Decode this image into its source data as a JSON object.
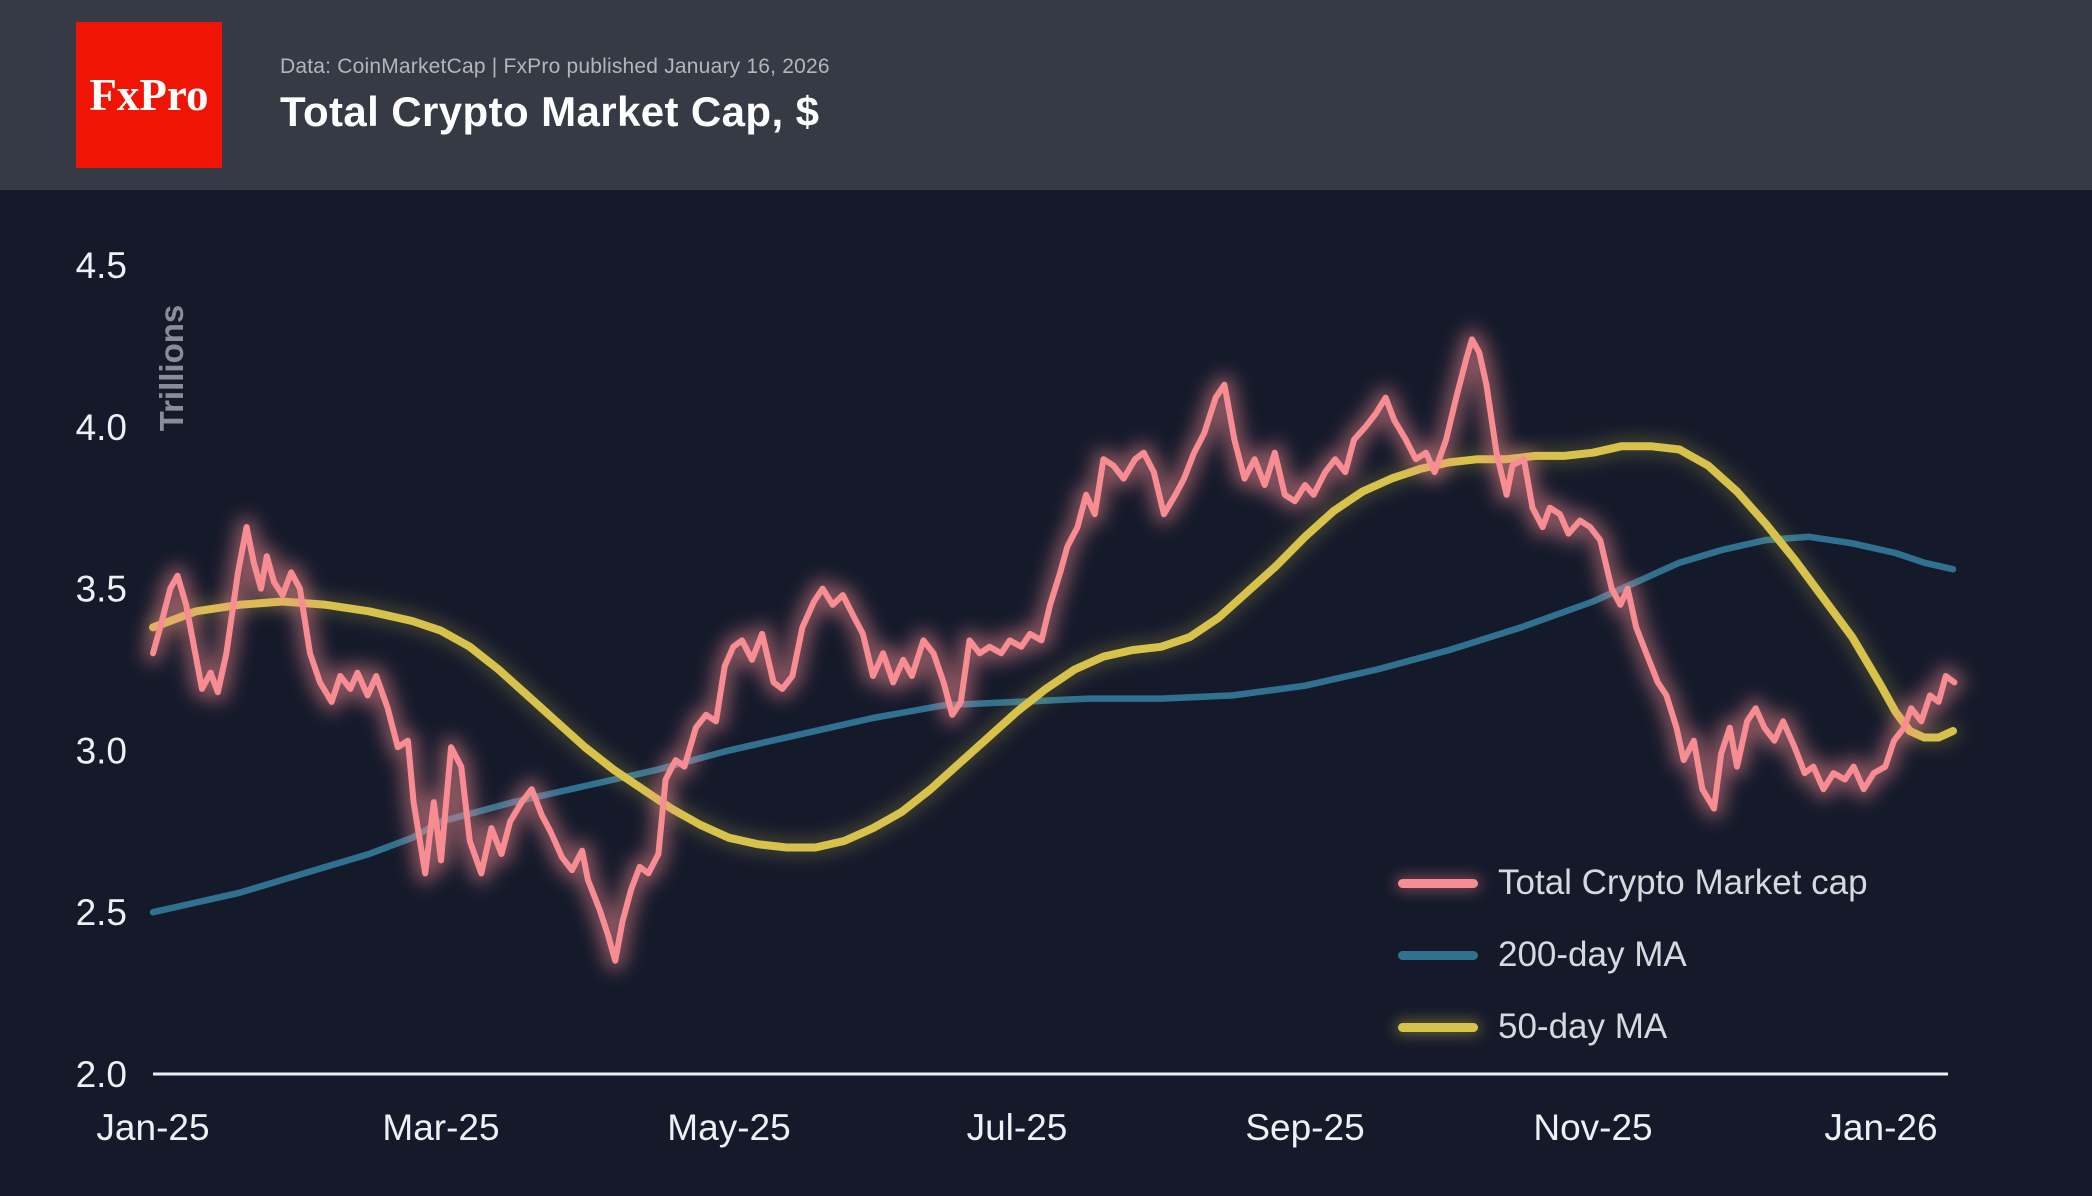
{
  "header": {
    "logo_text": "FxPro",
    "source_line": "Data: CoinMarketCap | FxPro published January 16, 2026",
    "title": "Total Crypto Market Cap, $"
  },
  "chart_data": {
    "type": "line",
    "title": "Total Crypto Market Cap, $",
    "xlabel": "",
    "ylabel": "Trillions",
    "x_unit": "months since Jan-2025",
    "xlim": [
      0,
      12.5
    ],
    "ylim": [
      2.0,
      4.5
    ],
    "grid": false,
    "legend_position": "bottom-right",
    "background_color": "#151a2b",
    "axis_text_color": "#eef0f4",
    "ylabel_color": "#8a8d98",
    "yticks": [
      {
        "value": 4.5,
        "label": "4.5"
      },
      {
        "value": 4.0,
        "label": "4.0"
      },
      {
        "value": 3.5,
        "label": "3.5"
      },
      {
        "value": 3.0,
        "label": "3.0"
      },
      {
        "value": 2.5,
        "label": "2.5"
      },
      {
        "value": 2.0,
        "label": "2.0"
      }
    ],
    "xticks": [
      {
        "value": 0,
        "label": "Jan-25"
      },
      {
        "value": 2,
        "label": "Mar-25"
      },
      {
        "value": 4,
        "label": "May-25"
      },
      {
        "value": 6,
        "label": "Jul-25"
      },
      {
        "value": 8,
        "label": "Sep-25"
      },
      {
        "value": 10,
        "label": "Nov-25"
      },
      {
        "value": 12,
        "label": "Jan-26"
      }
    ],
    "series": [
      {
        "name": "Total Crypto Market cap",
        "color": "#f78d92",
        "glow": true,
        "points": [
          [
            0,
            3.3
          ],
          [
            0.05,
            3.38
          ],
          [
            0.12,
            3.5
          ],
          [
            0.17,
            3.54
          ],
          [
            0.23,
            3.45
          ],
          [
            0.34,
            3.19
          ],
          [
            0.4,
            3.24
          ],
          [
            0.45,
            3.18
          ],
          [
            0.51,
            3.3
          ],
          [
            0.59,
            3.55
          ],
          [
            0.65,
            3.69
          ],
          [
            0.7,
            3.58
          ],
          [
            0.75,
            3.5
          ],
          [
            0.79,
            3.6
          ],
          [
            0.84,
            3.52
          ],
          [
            0.9,
            3.48
          ],
          [
            0.96,
            3.55
          ],
          [
            1.02,
            3.5
          ],
          [
            1.09,
            3.3
          ],
          [
            1.16,
            3.21
          ],
          [
            1.24,
            3.15
          ],
          [
            1.3,
            3.23
          ],
          [
            1.37,
            3.19
          ],
          [
            1.42,
            3.24
          ],
          [
            1.49,
            3.17
          ],
          [
            1.55,
            3.23
          ],
          [
            1.63,
            3.13
          ],
          [
            1.7,
            3.01
          ],
          [
            1.77,
            3.03
          ],
          [
            1.81,
            2.84
          ],
          [
            1.89,
            2.62
          ],
          [
            1.95,
            2.84
          ],
          [
            2,
            2.66
          ],
          [
            2.07,
            3.01
          ],
          [
            2.14,
            2.95
          ],
          [
            2.2,
            2.72
          ],
          [
            2.28,
            2.62
          ],
          [
            2.35,
            2.76
          ],
          [
            2.42,
            2.68
          ],
          [
            2.48,
            2.78
          ],
          [
            2.56,
            2.84
          ],
          [
            2.63,
            2.88
          ],
          [
            2.7,
            2.8
          ],
          [
            2.76,
            2.75
          ],
          [
            2.84,
            2.67
          ],
          [
            2.91,
            2.63
          ],
          [
            2.98,
            2.69
          ],
          [
            3.02,
            2.6
          ],
          [
            3.1,
            2.51
          ],
          [
            3.16,
            2.43
          ],
          [
            3.21,
            2.35
          ],
          [
            3.26,
            2.47
          ],
          [
            3.32,
            2.57
          ],
          [
            3.38,
            2.64
          ],
          [
            3.44,
            2.62
          ],
          [
            3.51,
            2.68
          ],
          [
            3.56,
            2.91
          ],
          [
            3.63,
            2.97
          ],
          [
            3.69,
            2.95
          ],
          [
            3.77,
            3.07
          ],
          [
            3.84,
            3.11
          ],
          [
            3.91,
            3.09
          ],
          [
            3.97,
            3.26
          ],
          [
            4.03,
            3.32
          ],
          [
            4.09,
            3.34
          ],
          [
            4.16,
            3.28
          ],
          [
            4.23,
            3.36
          ],
          [
            4.31,
            3.21
          ],
          [
            4.37,
            3.19
          ],
          [
            4.44,
            3.23
          ],
          [
            4.51,
            3.38
          ],
          [
            4.59,
            3.46
          ],
          [
            4.65,
            3.5
          ],
          [
            4.72,
            3.45
          ],
          [
            4.79,
            3.48
          ],
          [
            4.87,
            3.41
          ],
          [
            4.93,
            3.36
          ],
          [
            5,
            3.23
          ],
          [
            5.07,
            3.3
          ],
          [
            5.14,
            3.21
          ],
          [
            5.21,
            3.28
          ],
          [
            5.27,
            3.23
          ],
          [
            5.35,
            3.34
          ],
          [
            5.42,
            3.3
          ],
          [
            5.49,
            3.21
          ],
          [
            5.55,
            3.11
          ],
          [
            5.61,
            3.15
          ],
          [
            5.67,
            3.34
          ],
          [
            5.74,
            3.3
          ],
          [
            5.81,
            3.32
          ],
          [
            5.89,
            3.3
          ],
          [
            5.95,
            3.34
          ],
          [
            6.03,
            3.32
          ],
          [
            6.09,
            3.36
          ],
          [
            6.17,
            3.34
          ],
          [
            6.23,
            3.45
          ],
          [
            6.3,
            3.55
          ],
          [
            6.35,
            3.63
          ],
          [
            6.42,
            3.69
          ],
          [
            6.48,
            3.79
          ],
          [
            6.54,
            3.73
          ],
          [
            6.6,
            3.9
          ],
          [
            6.67,
            3.88
          ],
          [
            6.74,
            3.84
          ],
          [
            6.82,
            3.9
          ],
          [
            6.88,
            3.92
          ],
          [
            6.95,
            3.86
          ],
          [
            7.02,
            3.73
          ],
          [
            7.1,
            3.79
          ],
          [
            7.16,
            3.84
          ],
          [
            7.23,
            3.92
          ],
          [
            7.3,
            3.98
          ],
          [
            7.38,
            4.09
          ],
          [
            7.44,
            4.13
          ],
          [
            7.51,
            3.96
          ],
          [
            7.58,
            3.84
          ],
          [
            7.65,
            3.9
          ],
          [
            7.72,
            3.82
          ],
          [
            7.79,
            3.92
          ],
          [
            7.86,
            3.79
          ],
          [
            7.93,
            3.77
          ],
          [
            8,
            3.82
          ],
          [
            8.06,
            3.79
          ],
          [
            8.14,
            3.86
          ],
          [
            8.21,
            3.9
          ],
          [
            8.28,
            3.86
          ],
          [
            8.34,
            3.96
          ],
          [
            8.42,
            4
          ],
          [
            8.49,
            4.04
          ],
          [
            8.56,
            4.09
          ],
          [
            8.62,
            4.02
          ],
          [
            8.7,
            3.96
          ],
          [
            8.77,
            3.9
          ],
          [
            8.84,
            3.92
          ],
          [
            8.9,
            3.86
          ],
          [
            8.98,
            3.96
          ],
          [
            9.05,
            4.09
          ],
          [
            9.12,
            4.21
          ],
          [
            9.16,
            4.27
          ],
          [
            9.21,
            4.23
          ],
          [
            9.26,
            4.13
          ],
          [
            9.33,
            3.92
          ],
          [
            9.4,
            3.79
          ],
          [
            9.44,
            3.88
          ],
          [
            9.52,
            3.9
          ],
          [
            9.58,
            3.75
          ],
          [
            9.65,
            3.69
          ],
          [
            9.7,
            3.75
          ],
          [
            9.77,
            3.73
          ],
          [
            9.83,
            3.67
          ],
          [
            9.91,
            3.71
          ],
          [
            9.98,
            3.69
          ],
          [
            10.05,
            3.65
          ],
          [
            10.13,
            3.5
          ],
          [
            10.19,
            3.45
          ],
          [
            10.24,
            3.5
          ],
          [
            10.3,
            3.38
          ],
          [
            10.37,
            3.3
          ],
          [
            10.45,
            3.21
          ],
          [
            10.51,
            3.17
          ],
          [
            10.58,
            3.07
          ],
          [
            10.63,
            2.97
          ],
          [
            10.7,
            3.03
          ],
          [
            10.76,
            2.88
          ],
          [
            10.84,
            2.82
          ],
          [
            10.89,
            2.99
          ],
          [
            10.95,
            3.07
          ],
          [
            11,
            2.95
          ],
          [
            11.07,
            3.09
          ],
          [
            11.13,
            3.13
          ],
          [
            11.19,
            3.07
          ],
          [
            11.26,
            3.03
          ],
          [
            11.32,
            3.09
          ],
          [
            11.4,
            3.01
          ],
          [
            11.47,
            2.93
          ],
          [
            11.53,
            2.95
          ],
          [
            11.6,
            2.88
          ],
          [
            11.67,
            2.93
          ],
          [
            11.75,
            2.91
          ],
          [
            11.81,
            2.95
          ],
          [
            11.88,
            2.88
          ],
          [
            11.95,
            2.93
          ],
          [
            12.03,
            2.95
          ],
          [
            12.09,
            3.03
          ],
          [
            12.16,
            3.07
          ],
          [
            12.21,
            3.13
          ],
          [
            12.28,
            3.09
          ],
          [
            12.34,
            3.17
          ],
          [
            12.4,
            3.15
          ],
          [
            12.45,
            3.23
          ],
          [
            12.51,
            3.21
          ]
        ]
      },
      {
        "name": "200-day MA",
        "color": "#30718f",
        "glow": false,
        "points": [
          [
            0,
            2.5
          ],
          [
            0.3,
            2.53
          ],
          [
            0.6,
            2.56
          ],
          [
            0.9,
            2.6
          ],
          [
            1.2,
            2.64
          ],
          [
            1.5,
            2.68
          ],
          [
            1.8,
            2.73
          ],
          [
            2,
            2.78
          ],
          [
            2.5,
            2.84
          ],
          [
            3,
            2.89
          ],
          [
            3.5,
            2.94
          ],
          [
            4,
            3.0
          ],
          [
            4.5,
            3.05
          ],
          [
            5,
            3.1
          ],
          [
            5.5,
            3.14
          ],
          [
            6,
            3.15
          ],
          [
            6.5,
            3.16
          ],
          [
            7,
            3.16
          ],
          [
            7.5,
            3.17
          ],
          [
            8,
            3.2
          ],
          [
            8.5,
            3.25
          ],
          [
            9,
            3.31
          ],
          [
            9.5,
            3.38
          ],
          [
            10,
            3.46
          ],
          [
            10.3,
            3.52
          ],
          [
            10.6,
            3.58
          ],
          [
            10.9,
            3.62
          ],
          [
            11.2,
            3.65
          ],
          [
            11.5,
            3.66
          ],
          [
            11.8,
            3.64
          ],
          [
            12.1,
            3.61
          ],
          [
            12.3,
            3.58
          ],
          [
            12.5,
            3.56
          ]
        ]
      },
      {
        "name": "50-day MA",
        "color": "#d7c34b",
        "glow": true,
        "points": [
          [
            0,
            3.38
          ],
          [
            0.3,
            3.43
          ],
          [
            0.6,
            3.45
          ],
          [
            0.9,
            3.46
          ],
          [
            1.2,
            3.45
          ],
          [
            1.5,
            3.43
          ],
          [
            1.8,
            3.4
          ],
          [
            2,
            3.37
          ],
          [
            2.2,
            3.32
          ],
          [
            2.4,
            3.25
          ],
          [
            2.6,
            3.17
          ],
          [
            2.8,
            3.09
          ],
          [
            3,
            3.01
          ],
          [
            3.2,
            2.94
          ],
          [
            3.4,
            2.88
          ],
          [
            3.6,
            2.82
          ],
          [
            3.8,
            2.77
          ],
          [
            4,
            2.73
          ],
          [
            4.2,
            2.71
          ],
          [
            4.4,
            2.7
          ],
          [
            4.6,
            2.7
          ],
          [
            4.8,
            2.72
          ],
          [
            5,
            2.76
          ],
          [
            5.2,
            2.81
          ],
          [
            5.4,
            2.88
          ],
          [
            5.6,
            2.96
          ],
          [
            5.8,
            3.04
          ],
          [
            6,
            3.12
          ],
          [
            6.2,
            3.19
          ],
          [
            6.4,
            3.25
          ],
          [
            6.6,
            3.29
          ],
          [
            6.8,
            3.31
          ],
          [
            7,
            3.32
          ],
          [
            7.2,
            3.35
          ],
          [
            7.4,
            3.41
          ],
          [
            7.6,
            3.49
          ],
          [
            7.8,
            3.57
          ],
          [
            8,
            3.66
          ],
          [
            8.2,
            3.74
          ],
          [
            8.4,
            3.8
          ],
          [
            8.6,
            3.84
          ],
          [
            8.8,
            3.87
          ],
          [
            9,
            3.89
          ],
          [
            9.2,
            3.9
          ],
          [
            9.4,
            3.9
          ],
          [
            9.6,
            3.91
          ],
          [
            9.8,
            3.91
          ],
          [
            10,
            3.92
          ],
          [
            10.2,
            3.94
          ],
          [
            10.4,
            3.94
          ],
          [
            10.6,
            3.93
          ],
          [
            10.8,
            3.88
          ],
          [
            11,
            3.8
          ],
          [
            11.2,
            3.7
          ],
          [
            11.4,
            3.59
          ],
          [
            11.6,
            3.47
          ],
          [
            11.8,
            3.35
          ],
          [
            12,
            3.2
          ],
          [
            12.1,
            3.12
          ],
          [
            12.2,
            3.06
          ],
          [
            12.3,
            3.04
          ],
          [
            12.4,
            3.04
          ],
          [
            12.5,
            3.06
          ]
        ]
      }
    ]
  }
}
